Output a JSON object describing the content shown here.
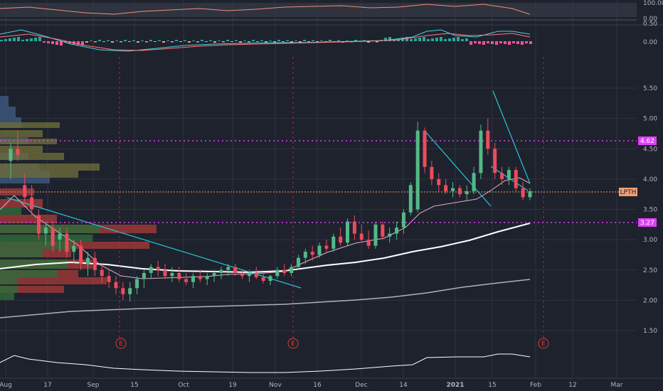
{
  "colors": {
    "background": "#1e222d",
    "grid": "#2e3340",
    "up_candle": "#53b987",
    "down_candle": "#eb4d5c",
    "magenta_level": "#e040fb",
    "current_price_line": "#f0a070",
    "trendline": "#26c6da",
    "ma_white": "#ffffff",
    "ma_gray": "#b0b0b8",
    "rsi_line": "#f09070",
    "macd_line": "#4dd0e1"
  },
  "ticker": "LPTH",
  "price_axis": {
    "ticks": [
      "5.50",
      "5.00",
      "4.50",
      "4.00",
      "3.50",
      "3.00",
      "2.50",
      "2.00",
      "1.50"
    ]
  },
  "levels": {
    "upper_label": "4.62",
    "lower_label": "3.27",
    "current_label": "LPTH"
  },
  "rsi_axis": {
    "ticks": [
      "100.00",
      "0.00"
    ]
  },
  "macd_axis": {
    "ticks": [
      "0.50",
      "0.00"
    ]
  },
  "time_axis": [
    "Aug",
    "17",
    "Sep",
    "15",
    "Oct",
    "19",
    "Nov",
    "16",
    "Dec",
    "14",
    "2021",
    "15",
    "Feb",
    "12",
    "Mar"
  ],
  "earnings_markers": [
    "E",
    "E",
    "E"
  ],
  "chart_data": {
    "type": "candlestick",
    "price_range": [
      1.2,
      5.8
    ],
    "levels": [
      4.62,
      3.27,
      3.78
    ],
    "candles": [
      [
        4.3,
        4.6,
        4.0,
        4.5
      ],
      [
        4.5,
        4.8,
        4.3,
        4.4
      ],
      [
        3.9,
        4.1,
        3.6,
        3.7
      ],
      [
        3.7,
        3.9,
        3.4,
        3.5
      ],
      [
        3.4,
        3.5,
        3.0,
        3.1
      ],
      [
        3.1,
        3.3,
        2.9,
        3.2
      ],
      [
        3.2,
        3.3,
        2.8,
        2.9
      ],
      [
        3.0,
        3.2,
        2.8,
        3.1
      ],
      [
        3.1,
        3.2,
        2.7,
        2.8
      ],
      [
        2.8,
        3.0,
        2.6,
        2.9
      ],
      [
        2.9,
        3.0,
        2.5,
        2.6
      ],
      [
        2.6,
        2.8,
        2.4,
        2.7
      ],
      [
        2.7,
        2.8,
        2.4,
        2.5
      ],
      [
        2.5,
        2.6,
        2.3,
        2.4
      ],
      [
        2.4,
        2.5,
        2.2,
        2.3
      ],
      [
        2.3,
        2.4,
        2.1,
        2.2
      ],
      [
        2.2,
        2.3,
        2.0,
        2.1
      ],
      [
        2.1,
        2.3,
        1.98,
        2.2
      ],
      [
        2.2,
        2.4,
        2.1,
        2.35
      ],
      [
        2.35,
        2.5,
        2.2,
        2.45
      ],
      [
        2.45,
        2.6,
        2.35,
        2.55
      ],
      [
        2.55,
        2.65,
        2.4,
        2.5
      ],
      [
        2.5,
        2.6,
        2.35,
        2.4
      ],
      [
        2.4,
        2.55,
        2.3,
        2.45
      ],
      [
        2.45,
        2.55,
        2.3,
        2.35
      ],
      [
        2.35,
        2.45,
        2.25,
        2.3
      ],
      [
        2.3,
        2.45,
        2.2,
        2.4
      ],
      [
        2.4,
        2.5,
        2.3,
        2.35
      ],
      [
        2.35,
        2.45,
        2.25,
        2.4
      ],
      [
        2.4,
        2.5,
        2.3,
        2.45
      ],
      [
        2.45,
        2.55,
        2.35,
        2.5
      ],
      [
        2.5,
        2.6,
        2.4,
        2.55
      ],
      [
        2.55,
        2.6,
        2.4,
        2.45
      ],
      [
        2.45,
        2.5,
        2.35,
        2.4
      ],
      [
        2.4,
        2.5,
        2.3,
        2.45
      ],
      [
        2.45,
        2.55,
        2.35,
        2.38
      ],
      [
        2.38,
        2.45,
        2.28,
        2.32
      ],
      [
        2.32,
        2.42,
        2.25,
        2.4
      ],
      [
        2.4,
        2.55,
        2.35,
        2.5
      ],
      [
        2.5,
        2.6,
        2.4,
        2.45
      ],
      [
        2.45,
        2.6,
        2.4,
        2.55
      ],
      [
        2.55,
        2.75,
        2.5,
        2.7
      ],
      [
        2.7,
        2.85,
        2.6,
        2.8
      ],
      [
        2.8,
        2.9,
        2.65,
        2.75
      ],
      [
        2.75,
        2.95,
        2.7,
        2.9
      ],
      [
        2.9,
        3.0,
        2.8,
        2.85
      ],
      [
        2.85,
        3.1,
        2.8,
        3.05
      ],
      [
        3.05,
        3.2,
        2.9,
        2.95
      ],
      [
        2.95,
        3.35,
        2.9,
        3.3
      ],
      [
        3.3,
        3.4,
        3.0,
        3.1
      ],
      [
        3.1,
        3.25,
        2.95,
        3.0
      ],
      [
        3.0,
        3.15,
        2.85,
        2.9
      ],
      [
        2.9,
        3.3,
        2.85,
        3.25
      ],
      [
        3.25,
        3.3,
        3.0,
        3.05
      ],
      [
        3.05,
        3.2,
        2.95,
        3.1
      ],
      [
        3.1,
        3.3,
        3.0,
        3.2
      ],
      [
        3.2,
        3.5,
        3.1,
        3.45
      ],
      [
        3.45,
        3.95,
        3.4,
        3.9
      ],
      [
        3.5,
        4.95,
        3.45,
        4.8
      ],
      [
        4.8,
        4.85,
        4.1,
        4.2
      ],
      [
        4.2,
        4.3,
        3.9,
        4.0
      ],
      [
        4.0,
        4.1,
        3.8,
        3.9
      ],
      [
        3.9,
        4.0,
        3.75,
        3.8
      ],
      [
        3.8,
        3.95,
        3.7,
        3.85
      ],
      [
        3.85,
        3.9,
        3.7,
        3.75
      ],
      [
        3.75,
        3.9,
        3.65,
        3.8
      ],
      [
        3.8,
        4.2,
        3.75,
        4.1
      ],
      [
        4.1,
        4.9,
        4.0,
        4.8
      ],
      [
        4.8,
        5.0,
        4.4,
        4.5
      ],
      [
        4.5,
        4.6,
        4.0,
        4.1
      ],
      [
        4.1,
        4.2,
        3.9,
        4.0
      ],
      [
        4.0,
        4.2,
        3.9,
        4.15
      ],
      [
        4.15,
        4.2,
        3.8,
        3.85
      ],
      [
        3.85,
        3.95,
        3.65,
        3.7
      ],
      [
        3.7,
        3.85,
        3.65,
        3.8
      ]
    ],
    "xlabels": [
      "Aug",
      "17",
      "Sep",
      "15",
      "Oct",
      "19",
      "Nov",
      "16",
      "Dec",
      "14",
      "2021",
      "15",
      "Feb",
      "12",
      "Mar"
    ]
  }
}
